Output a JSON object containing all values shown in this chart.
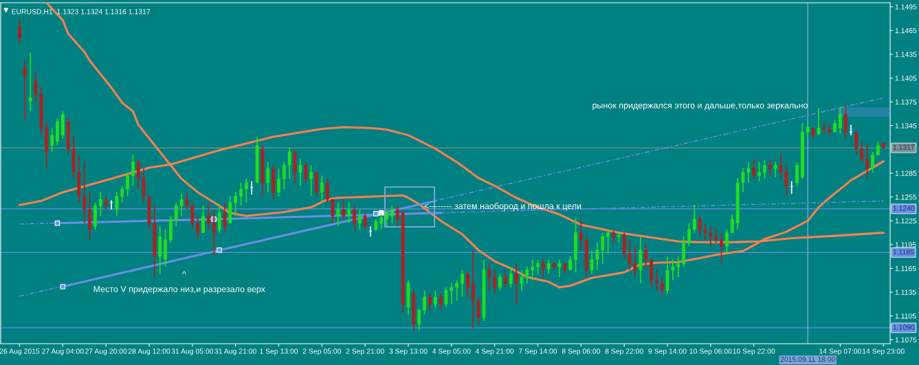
{
  "chart_data": {
    "type": "candlestick",
    "title": "EURUSD,H1  1.1323 1.1324 1.1316 1.1317",
    "categories": [
      "26 Aug 2015",
      null,
      null,
      null,
      null,
      null,
      null,
      null,
      "27 Aug 04:00",
      null,
      null,
      null,
      null,
      null,
      null,
      null,
      "27 Aug 20:00",
      null,
      null,
      null,
      null,
      null,
      null,
      null,
      "28 Aug 12:00",
      null,
      null,
      null,
      null,
      null,
      null,
      null,
      "31 Aug 05:00",
      null,
      null,
      null,
      null,
      null,
      null,
      null,
      "31 Aug 21:00",
      null,
      null,
      null,
      null,
      null,
      null,
      null,
      "1 Sep 13:00",
      null,
      null,
      null,
      null,
      null,
      null,
      null,
      "2 Sep 05:00",
      null,
      null,
      null,
      null,
      null,
      null,
      null,
      "2 Sep 21:00",
      null,
      null,
      null,
      null,
      null,
      null,
      null,
      "3 Sep 13:00",
      null,
      null,
      null,
      null,
      null,
      null,
      null,
      "4 Sep 05:00",
      null,
      null,
      null,
      null,
      null,
      null,
      null,
      "4 Sep 21:00",
      null,
      null,
      null,
      null,
      null,
      null,
      null,
      "7 Sep 14:00",
      null,
      null,
      null,
      null,
      null,
      null,
      null,
      "8 Sep 06:00",
      null,
      null,
      null,
      null,
      null,
      null,
      null,
      "8 Sep 22:00",
      null,
      null,
      null,
      null,
      null,
      null,
      null,
      "9 Sep 14:00",
      null,
      null,
      null,
      null,
      null,
      null,
      null,
      "10 Sep 06:00",
      null,
      null,
      null,
      null,
      null,
      null,
      null,
      "10 Sep 22:00",
      null,
      null,
      null,
      null,
      null,
      null,
      null,
      null,
      null,
      "2015.09.11 18:00",
      null,
      null,
      null,
      null,
      null,
      "14 Sep 07:00",
      null,
      null,
      null,
      null,
      null,
      null,
      null,
      "14 Sep 23:00"
    ],
    "ohlc": [
      [
        1.1469,
        1.148,
        1.1448,
        1.1455
      ],
      [
        1.1418,
        1.1427,
        1.1352,
        1.1407
      ],
      [
        1.1376,
        1.1437,
        1.1363,
        1.138
      ],
      [
        1.1401,
        1.1412,
        1.1374,
        1.1384
      ],
      [
        1.1384,
        1.1393,
        1.1333,
        1.1342
      ],
      [
        1.1342,
        1.135,
        1.1291,
        1.1312
      ],
      [
        1.132,
        1.1342,
        1.1312,
        1.1333
      ],
      [
        1.1325,
        1.1354,
        1.132,
        1.135
      ],
      [
        1.1333,
        1.1363,
        1.1329,
        1.1359
      ],
      [
        1.135,
        1.1354,
        1.1308,
        1.1316
      ],
      [
        1.1316,
        1.1333,
        1.1278,
        1.1286
      ],
      [
        1.1286,
        1.1308,
        1.1248,
        1.1256
      ],
      [
        1.1256,
        1.1299,
        1.1222,
        1.1239
      ],
      [
        1.1239,
        1.1261,
        1.1201,
        1.1214
      ],
      [
        1.1218,
        1.1248,
        1.1214,
        1.1244
      ],
      [
        1.1244,
        1.1261,
        1.1231,
        1.1252
      ],
      [
        1.125,
        1.1256,
        1.1239,
        1.1244
      ],
      [
        1.1248,
        1.1251,
        1.1239,
        1.1248
      ],
      [
        1.1239,
        1.1261,
        1.1231,
        1.1256
      ],
      [
        1.1256,
        1.1269,
        1.1248,
        1.1265
      ],
      [
        1.1265,
        1.1286,
        1.1256,
        1.1282
      ],
      [
        1.1282,
        1.1308,
        1.1269,
        1.1299
      ],
      [
        1.1299,
        1.1303,
        1.1265,
        1.1278
      ],
      [
        1.1278,
        1.1291,
        1.1248,
        1.1256
      ],
      [
        1.1256,
        1.1256,
        1.1214,
        1.1222
      ],
      [
        1.1222,
        1.1245,
        1.1154,
        1.118
      ],
      [
        1.118,
        1.1218,
        1.1158,
        1.1205
      ],
      [
        1.1176,
        1.1214,
        1.1167,
        1.1201
      ],
      [
        1.1201,
        1.1231,
        1.1197,
        1.1227
      ],
      [
        1.1227,
        1.1248,
        1.1218,
        1.1244
      ],
      [
        1.1244,
        1.1259,
        1.1231,
        1.1252
      ],
      [
        1.1252,
        1.1261,
        1.1239,
        1.1244
      ],
      [
        1.1244,
        1.1248,
        1.1214,
        1.1222
      ],
      [
        1.1222,
        1.1231,
        1.1201,
        1.121
      ],
      [
        1.121,
        1.1244,
        1.121,
        1.1231
      ],
      [
        1.1231,
        1.1248,
        1.1214,
        1.1222
      ],
      [
        1.1222,
        1.1239,
        1.118,
        1.121
      ],
      [
        1.1214,
        1.1244,
        1.121,
        1.1235
      ],
      [
        1.1235,
        1.1248,
        1.121,
        1.1218
      ],
      [
        1.1222,
        1.1256,
        1.1222,
        1.1248
      ],
      [
        1.1248,
        1.1261,
        1.1231,
        1.1256
      ],
      [
        1.1256,
        1.1273,
        1.1244,
        1.1265
      ],
      [
        1.1265,
        1.1278,
        1.1248,
        1.1273
      ],
      [
        1.1267,
        1.1275,
        1.1258,
        1.1267
      ],
      [
        1.1273,
        1.1331,
        1.1273,
        1.132
      ],
      [
        1.1316,
        1.132,
        1.1256,
        1.1273
      ],
      [
        1.1273,
        1.1299,
        1.1261,
        1.1291
      ],
      [
        1.1291,
        1.1295,
        1.1252,
        1.1261
      ],
      [
        1.1261,
        1.1291,
        1.1256,
        1.1278
      ],
      [
        1.1278,
        1.1299,
        1.1265,
        1.1295
      ],
      [
        1.1295,
        1.1318,
        1.1278,
        1.1312
      ],
      [
        1.1312,
        1.1312,
        1.1273,
        1.1286
      ],
      [
        1.1286,
        1.1303,
        1.1269,
        1.1295
      ],
      [
        1.1295,
        1.1299,
        1.1273,
        1.1278
      ],
      [
        1.1278,
        1.1295,
        1.1256,
        1.1286
      ],
      [
        1.1286,
        1.1286,
        1.1256,
        1.1261
      ],
      [
        1.1261,
        1.1282,
        1.1248,
        1.1273
      ],
      [
        1.1273,
        1.1278,
        1.1248,
        1.1252
      ],
      [
        1.1252,
        1.1252,
        1.1222,
        1.1231
      ],
      [
        1.1231,
        1.1248,
        1.1218,
        1.1239
      ],
      [
        1.1239,
        1.1252,
        1.1227,
        1.1231
      ],
      [
        1.1231,
        1.1248,
        1.1222,
        1.1239
      ],
      [
        1.1239,
        1.1244,
        1.1214,
        1.1222
      ],
      [
        1.1222,
        1.1239,
        1.1214,
        1.1231
      ],
      [
        1.1231,
        1.1235,
        1.1214,
        1.1218
      ],
      [
        1.1212,
        1.1218,
        1.1205,
        1.1212
      ],
      [
        1.1214,
        1.1227,
        1.1212,
        1.1224
      ],
      [
        1.1222,
        1.1233,
        1.1214,
        1.1229
      ],
      [
        1.1227,
        1.1239,
        1.1218,
        1.1235
      ],
      [
        1.1231,
        1.1244,
        1.1222,
        1.1239
      ],
      [
        1.1239,
        1.1244,
        1.1218,
        1.1227
      ],
      [
        1.1235,
        1.1237,
        1.1109,
        1.112
      ],
      [
        1.1116,
        1.115,
        1.1106,
        1.1146
      ],
      [
        1.1133,
        1.1137,
        1.1086,
        1.1095
      ],
      [
        1.1095,
        1.1114,
        1.1086,
        1.1112
      ],
      [
        1.1112,
        1.1137,
        1.1107,
        1.1129
      ],
      [
        1.1129,
        1.1133,
        1.1112,
        1.112
      ],
      [
        1.112,
        1.1137,
        1.1116,
        1.1129
      ],
      [
        1.1129,
        1.1133,
        1.1112,
        1.112
      ],
      [
        1.112,
        1.1141,
        1.1116,
        1.1137
      ],
      [
        1.1137,
        1.1146,
        1.112,
        1.1141
      ],
      [
        1.1141,
        1.115,
        1.1124,
        1.1146
      ],
      [
        1.1146,
        1.1163,
        1.1129,
        1.1158
      ],
      [
        1.1158,
        1.1161,
        1.1129,
        1.1141
      ],
      [
        1.1146,
        1.1188,
        1.1089,
        1.1124
      ],
      [
        1.1124,
        1.1129,
        1.1095,
        1.1103
      ],
      [
        1.1103,
        1.1176,
        1.1099,
        1.1163
      ],
      [
        1.1163,
        1.1171,
        1.1137,
        1.1154
      ],
      [
        1.1154,
        1.1163,
        1.1133,
        1.1141
      ],
      [
        1.1141,
        1.1158,
        1.1137,
        1.1154
      ],
      [
        1.1154,
        1.1163,
        1.1141,
        1.1146
      ],
      [
        1.1146,
        1.1167,
        1.1141,
        1.1158
      ],
      [
        1.1158,
        1.1171,
        1.112,
        1.1146
      ],
      [
        1.1146,
        1.1163,
        1.1137,
        1.1154
      ],
      [
        1.1154,
        1.1167,
        1.1146,
        1.1163
      ],
      [
        1.1163,
        1.1176,
        1.115,
        1.1167
      ],
      [
        1.1167,
        1.1176,
        1.1158,
        1.1171
      ],
      [
        1.1171,
        1.1177,
        1.1154,
        1.1164
      ],
      [
        1.1164,
        1.1176,
        1.1158,
        1.1171
      ],
      [
        1.1171,
        1.1173,
        1.1163,
        1.1167
      ],
      [
        1.1167,
        1.1176,
        1.1154,
        1.1171
      ],
      [
        1.1171,
        1.1171,
        1.1158,
        1.1163
      ],
      [
        1.1163,
        1.118,
        1.1163,
        1.1176
      ],
      [
        1.1176,
        1.1229,
        1.116,
        1.121
      ],
      [
        1.121,
        1.1227,
        1.1188,
        1.1201
      ],
      [
        1.1201,
        1.1205,
        1.1154,
        1.1163
      ],
      [
        1.1163,
        1.1188,
        1.1158,
        1.1176
      ],
      [
        1.1176,
        1.1197,
        1.1163,
        1.1188
      ],
      [
        1.1188,
        1.121,
        1.1171,
        1.1205
      ],
      [
        1.1205,
        1.1214,
        1.1184,
        1.121
      ],
      [
        1.121,
        1.1214,
        1.1197,
        1.1205
      ],
      [
        1.1205,
        1.121,
        1.1197,
        1.1207
      ],
      [
        1.1207,
        1.121,
        1.1176,
        1.1184
      ],
      [
        1.1184,
        1.1201,
        1.1163,
        1.1171
      ],
      [
        1.1171,
        1.1193,
        1.1154,
        1.1163
      ],
      [
        1.1163,
        1.1205,
        1.1146,
        1.1188
      ],
      [
        1.1188,
        1.1197,
        1.1163,
        1.1176
      ],
      [
        1.1176,
        1.1176,
        1.1141,
        1.115
      ],
      [
        1.115,
        1.1163,
        1.1137,
        1.1146
      ],
      [
        1.1146,
        1.1154,
        1.1131,
        1.1137
      ],
      [
        1.1137,
        1.118,
        1.1133,
        1.1163
      ],
      [
        1.1163,
        1.1176,
        1.115,
        1.1167
      ],
      [
        1.1167,
        1.118,
        1.1154,
        1.1171
      ],
      [
        1.1171,
        1.1205,
        1.1167,
        1.1197
      ],
      [
        1.1197,
        1.1222,
        1.1193,
        1.1214
      ],
      [
        1.1214,
        1.1245,
        1.121,
        1.1227
      ],
      [
        1.1227,
        1.1231,
        1.1205,
        1.1214
      ],
      [
        1.1214,
        1.1222,
        1.1201,
        1.121
      ],
      [
        1.121,
        1.1218,
        1.1193,
        1.1205
      ],
      [
        1.1205,
        1.1214,
        1.1197,
        1.1201
      ],
      [
        1.1201,
        1.121,
        1.1171,
        1.1193
      ],
      [
        1.1193,
        1.1214,
        1.1184,
        1.121
      ],
      [
        1.121,
        1.1233,
        1.121,
        1.1227
      ],
      [
        1.1222,
        1.1279,
        1.1214,
        1.1273
      ],
      [
        1.1273,
        1.1291,
        1.1261,
        1.1286
      ],
      [
        1.1286,
        1.1299,
        1.1273,
        1.1291
      ],
      [
        1.1291,
        1.1303,
        1.1278,
        1.1282
      ],
      [
        1.1282,
        1.1299,
        1.1275,
        1.1286
      ],
      [
        1.1286,
        1.1301,
        1.1278,
        1.1295
      ],
      [
        1.1295,
        1.1303,
        1.1282,
        1.1291
      ],
      [
        1.1291,
        1.1299,
        1.128,
        1.1295
      ],
      [
        1.1295,
        1.1309,
        1.1278,
        1.1286
      ],
      [
        1.1286,
        1.1295,
        1.1256,
        1.1269
      ],
      [
        1.1268,
        1.1275,
        1.1259,
        1.1268
      ],
      [
        1.1273,
        1.1299,
        1.1269,
        1.1295
      ],
      [
        1.128,
        1.1348,
        1.1278,
        1.1337
      ],
      [
        1.1337,
        1.1348,
        1.1329,
        1.1343
      ],
      [
        1.1342,
        1.1342,
        1.1329,
        1.1333
      ],
      [
        1.1335,
        1.1367,
        1.1333,
        1.1342
      ],
      [
        1.1342,
        1.135,
        1.1335,
        1.134
      ],
      [
        1.134,
        1.1346,
        1.1333,
        1.1337
      ],
      [
        1.1337,
        1.1352,
        1.1337,
        1.1348
      ],
      [
        1.1342,
        1.1369,
        1.1335,
        1.1359
      ],
      [
        1.1359,
        1.1371,
        1.1329,
        1.1337
      ],
      [
        1.1337,
        1.1346,
        1.1333,
        1.1337
      ],
      [
        1.1337,
        1.1337,
        1.1309,
        1.1316
      ],
      [
        1.1316,
        1.1325,
        1.1299,
        1.1303
      ],
      [
        1.1303,
        1.1322,
        1.1278,
        1.1291
      ],
      [
        1.1291,
        1.1312,
        1.1286,
        1.1308
      ],
      [
        1.1308,
        1.1325,
        1.1308,
        1.132
      ],
      [
        1.1323,
        1.1324,
        1.1316,
        1.1317
      ]
    ],
    "series": [
      {
        "type": "line",
        "color": "#ff7f50",
        "line_style": "solid",
        "values": [
          null,
          null,
          null,
          null,
          null,
          1.15,
          null,
          null,
          1.1478,
          1.1461,
          null,
          null,
          1.1438,
          1.1427,
          null,
          1.141,
          null,
          1.1393,
          null,
          1.1374,
          null,
          1.1363,
          1.1346,
          null,
          1.1329,
          null,
          1.1312,
          null,
          1.1295,
          null,
          1.1278,
          null,
          null,
          1.1261,
          null,
          null,
          null,
          1.1244,
          null,
          1.1235,
          null,
          null,
          1.1231,
          null,
          null,
          null,
          null,
          null,
          null,
          1.1236,
          null,
          null,
          null,
          null,
          1.1242,
          null,
          null,
          1.1252,
          null,
          1.1254,
          null,
          null,
          null,
          null,
          null,
          null,
          null,
          null,
          null,
          null,
          null,
          1.1257,
          1.1254,
          null,
          1.1246,
          null,
          null,
          null,
          1.1225,
          null,
          null,
          null,
          1.1208,
          null,
          null,
          1.1188,
          null,
          null,
          1.1174,
          null,
          null,
          1.1165,
          null,
          null,
          1.1154,
          null,
          null,
          null,
          1.1148,
          null,
          1.1141,
          null,
          1.1143,
          null,
          null,
          null,
          1.1153,
          null,
          null,
          null,
          null,
          null,
          1.116,
          null,
          null,
          1.117,
          null,
          null,
          1.1172,
          null,
          null,
          null,
          1.1173,
          null,
          null,
          null,
          1.1178,
          null,
          null,
          1.1182,
          null,
          null,
          null,
          null,
          1.1187,
          null,
          1.1194,
          null,
          1.1202,
          null,
          null,
          null,
          1.1211,
          null,
          null,
          null,
          1.1225,
          null,
          1.1242,
          null,
          1.1254,
          null,
          1.1265,
          null,
          1.1276,
          null,
          null,
          1.1288,
          null,
          null,
          1.13
        ]
      },
      {
        "type": "line",
        "color": "#ff7f50",
        "line_style": "solid",
        "values": [
          1.1245,
          null,
          null,
          null,
          1.125,
          null,
          null,
          null,
          1.1261,
          null,
          null,
          null,
          null,
          null,
          null,
          null,
          null,
          1.1278,
          null,
          null,
          null,
          null,
          null,
          null,
          1.1292,
          null,
          null,
          null,
          1.1296,
          null,
          null,
          null,
          null,
          null,
          null,
          null,
          null,
          1.1314,
          null,
          null,
          null,
          null,
          null,
          null,
          null,
          null,
          null,
          1.1331,
          null,
          null,
          null,
          null,
          null,
          null,
          null,
          null,
          1.1341,
          null,
          null,
          null,
          1.1343,
          null,
          null,
          null,
          null,
          1.1342,
          null,
          null,
          1.134,
          null,
          null,
          null,
          1.1333,
          null,
          null,
          null,
          null,
          1.1316,
          null,
          null,
          null,
          1.1299,
          null,
          null,
          null,
          1.1279,
          null,
          null,
          1.1269,
          null,
          null,
          null,
          1.1254,
          null,
          null,
          null,
          1.1242,
          null,
          null,
          null,
          1.1233,
          null,
          null,
          null,
          1.122,
          null,
          null,
          null,
          null,
          null,
          null,
          1.121,
          null,
          null,
          null,
          null,
          1.1205,
          null,
          null,
          null,
          null,
          null,
          1.1199,
          null,
          null,
          null,
          1.1198,
          null,
          null,
          null,
          null,
          null,
          1.1198,
          null,
          null,
          null,
          null,
          1.1199,
          null,
          null,
          null,
          null,
          null,
          1.1203,
          null,
          null,
          null,
          null,
          null,
          null,
          null,
          1.1206,
          null,
          null,
          null,
          null,
          null,
          null,
          null,
          null,
          1.121
        ]
      },
      {
        "type": "line",
        "color": "#6a8ee6",
        "line_style": "dashed",
        "values": [
          1.113,
          null,
          null,
          null,
          null,
          null,
          null,
          null,
          null,
          null,
          null,
          null,
          null,
          null,
          null,
          null,
          null,
          null,
          null,
          null,
          null,
          null,
          null,
          null,
          null,
          null,
          null,
          null,
          null,
          null,
          null,
          null,
          null,
          null,
          null,
          null,
          null,
          null,
          null,
          null,
          null,
          null,
          null,
          null,
          null,
          null,
          null,
          null,
          null,
          null,
          null,
          null,
          null,
          null,
          null,
          null,
          null,
          null,
          null,
          null,
          null,
          null,
          null,
          null,
          null,
          null,
          null,
          null,
          null,
          null,
          null,
          null,
          null,
          null,
          null,
          null,
          null,
          null,
          null,
          null,
          null,
          null,
          null,
          null,
          null,
          null,
          null,
          null,
          null,
          null,
          null,
          null,
          null,
          null,
          null,
          null,
          null,
          null,
          null,
          null,
          null,
          null,
          null,
          null,
          null,
          null,
          null,
          null,
          null,
          null,
          null,
          null,
          null,
          null,
          null,
          null,
          null,
          null,
          null,
          null,
          null,
          null,
          null,
          null,
          null,
          null,
          null,
          null,
          null,
          null,
          null,
          null,
          null,
          null,
          null,
          null,
          null,
          null,
          null,
          null,
          null,
          null,
          null,
          null,
          null,
          null,
          null,
          null,
          null,
          null,
          null,
          null,
          null,
          null,
          null,
          null,
          null,
          null,
          null,
          null,
          1.138
        ]
      },
      {
        "type": "line",
        "color": "#6a8ee6",
        "line_style": "solid",
        "values": [
          null,
          null,
          null,
          null,
          null,
          null,
          null,
          null,
          1.1142,
          null,
          null,
          null,
          null,
          null,
          null,
          null,
          null,
          null,
          null,
          null,
          null,
          null,
          null,
          null,
          null,
          null,
          null,
          null,
          null,
          null,
          null,
          null,
          null,
          null,
          null,
          null,
          null,
          1.1188,
          null,
          null,
          null,
          null,
          null,
          null,
          null,
          null,
          null,
          null,
          null,
          null,
          null,
          null,
          null,
          null,
          null,
          null,
          null,
          null,
          null,
          null,
          null,
          null,
          null,
          null,
          null,
          null,
          null,
          null,
          null,
          null,
          null,
          null,
          null,
          null,
          null,
          null,
          null,
          1.125,
          null,
          null,
          null,
          null,
          null,
          null,
          null,
          null,
          null,
          null,
          null,
          null,
          null,
          null,
          null,
          null,
          null,
          null,
          null,
          null,
          null,
          null,
          null,
          null,
          null,
          null,
          null,
          null,
          null,
          null,
          null,
          null,
          null,
          null,
          null,
          null,
          null,
          null,
          null,
          null,
          null,
          null,
          null,
          null,
          null,
          null,
          null,
          null,
          null,
          null,
          null,
          null,
          null,
          null,
          null,
          null,
          null,
          null,
          null,
          null,
          null,
          null,
          null,
          null,
          null,
          null,
          null,
          null,
          null,
          null,
          null,
          null,
          null,
          null,
          null,
          null,
          null,
          null,
          null,
          null,
          null,
          null,
          null
        ]
      },
      {
        "type": "line",
        "color": "#6a8ee6",
        "line_style": "dashed",
        "values": [
          1.1221,
          null,
          null,
          null,
          null,
          null,
          null,
          null,
          null,
          null,
          null,
          null,
          null,
          null,
          null,
          null,
          null,
          null,
          null,
          null,
          null,
          null,
          null,
          null,
          null,
          null,
          null,
          null,
          null,
          null,
          null,
          null,
          null,
          null,
          null,
          null,
          null,
          null,
          null,
          null,
          null,
          null,
          null,
          null,
          null,
          null,
          null,
          null,
          null,
          null,
          null,
          null,
          null,
          null,
          null,
          null,
          null,
          null,
          null,
          null,
          null,
          null,
          null,
          null,
          null,
          null,
          null,
          null,
          null,
          null,
          null,
          null,
          null,
          null,
          null,
          null,
          null,
          null,
          null,
          null,
          null,
          null,
          null,
          null,
          null,
          null,
          null,
          null,
          null,
          null,
          null,
          null,
          null,
          null,
          null,
          null,
          null,
          null,
          null,
          null,
          null,
          null,
          null,
          null,
          null,
          null,
          null,
          null,
          null,
          null,
          null,
          null,
          null,
          null,
          null,
          null,
          null,
          null,
          null,
          null,
          null,
          null,
          null,
          null,
          null,
          null,
          null,
          null,
          null,
          null,
          null,
          null,
          null,
          null,
          null,
          null,
          null,
          null,
          null,
          null,
          null,
          null,
          null,
          null,
          null,
          null,
          null,
          null,
          null,
          null,
          null,
          null,
          null,
          null,
          null,
          null,
          null,
          null,
          null,
          null,
          1.125
        ]
      },
      {
        "type": "line",
        "color": "#6a8ee6",
        "line_style": "solid",
        "values": [
          null,
          null,
          null,
          null,
          null,
          null,
          null,
          1.1222,
          null,
          null,
          null,
          null,
          null,
          null,
          null,
          null,
          null,
          null,
          null,
          null,
          null,
          null,
          null,
          null,
          null,
          null,
          null,
          null,
          null,
          null,
          null,
          null,
          null,
          null,
          null,
          null,
          1.1227,
          null,
          null,
          null,
          null,
          null,
          null,
          null,
          null,
          null,
          null,
          null,
          null,
          null,
          null,
          null,
          null,
          null,
          null,
          null,
          null,
          null,
          null,
          null,
          null,
          null,
          null,
          null,
          null,
          null,
          null,
          null,
          null,
          null,
          null,
          null,
          null,
          null,
          null,
          null,
          null,
          null,
          1.1235,
          null,
          null,
          null,
          null,
          null,
          null,
          null,
          null,
          null,
          null,
          null,
          null,
          null,
          null,
          null,
          null,
          null,
          null,
          null,
          null,
          null,
          null,
          null,
          null,
          null,
          null,
          null,
          null,
          null,
          null,
          null,
          null,
          null,
          null,
          null,
          null,
          null,
          null,
          null,
          null,
          null,
          null,
          null,
          null,
          null,
          null,
          null,
          null,
          null,
          null,
          null,
          null,
          null,
          null,
          null,
          null,
          null,
          null,
          null,
          null,
          null,
          null,
          null,
          null,
          null,
          null,
          null,
          null,
          null,
          null,
          null,
          null,
          null,
          null,
          null,
          null,
          null,
          null,
          null,
          null,
          null,
          null
        ]
      },
      {
        "type": "scatter",
        "color": "#6a8ee6",
        "marker": "square",
        "values": [
          null,
          null,
          null,
          null,
          null,
          null,
          null,
          1.1222,
          1.1142,
          null,
          null,
          null,
          null,
          null,
          null,
          null,
          null,
          null,
          null,
          null,
          null,
          null,
          null,
          null,
          null,
          null,
          null,
          null,
          null,
          null,
          null,
          null,
          null,
          null,
          null,
          null,
          1.1227,
          1.1188,
          null,
          null,
          null,
          null,
          null,
          null,
          null,
          null,
          null,
          null,
          null,
          null,
          null,
          null,
          null,
          null,
          null,
          null,
          null,
          null,
          null,
          null,
          null,
          null,
          null,
          null,
          null,
          null,
          1.1234,
          null,
          null,
          null,
          null,
          null,
          null,
          null,
          null,
          null,
          null,
          null,
          null,
          null,
          null,
          null,
          null,
          null,
          null,
          null,
          null,
          null,
          null,
          null,
          null,
          null,
          null,
          null,
          null,
          null,
          null,
          null,
          null,
          null,
          null,
          null,
          null,
          null,
          null,
          null,
          null,
          null,
          null,
          null,
          null,
          null,
          null,
          null,
          null,
          null,
          null,
          null,
          null,
          null,
          null,
          null,
          null,
          null,
          null,
          null,
          null,
          null,
          null,
          null,
          null,
          null,
          null,
          null,
          null,
          null,
          null,
          null,
          null,
          null,
          null,
          null,
          null,
          null,
          null,
          null,
          null,
          null,
          null,
          null,
          null,
          null,
          null,
          null,
          null,
          null,
          null,
          null,
          null,
          null,
          null
        ]
      },
      {
        "type": "scatter",
        "color": "#ffffff",
        "marker": "square",
        "values": [
          null,
          null,
          null,
          null,
          null,
          null,
          null,
          null,
          null,
          null,
          null,
          null,
          null,
          null,
          null,
          null,
          null,
          null,
          null,
          null,
          null,
          null,
          null,
          null,
          null,
          null,
          null,
          null,
          null,
          null,
          null,
          null,
          null,
          null,
          null,
          null,
          null,
          null,
          null,
          null,
          null,
          null,
          null,
          null,
          null,
          null,
          null,
          null,
          null,
          null,
          null,
          null,
          null,
          null,
          null,
          null,
          null,
          null,
          null,
          null,
          null,
          null,
          null,
          null,
          null,
          null,
          null,
          1.1235,
          null,
          null,
          null,
          null,
          null,
          null,
          null,
          null,
          null,
          null,
          null,
          null,
          null,
          null,
          null,
          null,
          null,
          null,
          null,
          null,
          null,
          null,
          null,
          null,
          null,
          null,
          null,
          null,
          null,
          null,
          null,
          null,
          null,
          null,
          null,
          null,
          null,
          null,
          null,
          null,
          null,
          null,
          null,
          null,
          null,
          null,
          null,
          null,
          null,
          null,
          null,
          null,
          null,
          null,
          null,
          null,
          null,
          null,
          null,
          null,
          null,
          null,
          null,
          null,
          null,
          null,
          null,
          null,
          null,
          null,
          null,
          null,
          null,
          null,
          null,
          null,
          null,
          null,
          null,
          null,
          null,
          null,
          null,
          null,
          null,
          null,
          null,
          null,
          null,
          null,
          null,
          null,
          null
        ]
      }
    ],
    "ref_lines": [
      {
        "axis": "y",
        "value": 1.1317,
        "label": "1.1317",
        "color": "#7f8f8f"
      },
      {
        "axis": "y",
        "value": 1.124,
        "label": "1.1240",
        "color": "#6a8ee6"
      },
      {
        "axis": "y",
        "value": 1.1185,
        "label": "1.1185",
        "color": "#6a8ee6"
      },
      {
        "axis": "y",
        "value": 1.109,
        "label": "1.1090",
        "color": "#6a8ee6"
      },
      {
        "axis": "x",
        "value": "2015.09.11 18:00",
        "color": "#7fa6d9"
      }
    ],
    "annotations": [
      "^",
      "Место V придержало низ,и разрезало верх",
      "<-------- затем наобород и пошла к цели",
      "рынок придержался этого и дальше,только зеркально"
    ],
    "ylim": [
      1.107,
      1.15
    ],
    "yticks": [
      1.1495,
      1.1465,
      1.1435,
      1.1405,
      1.1375,
      1.1345,
      1.1285,
      1.1255,
      1.1225,
      1.1195,
      1.1165,
      1.1135,
      1.1105,
      1.1075
    ],
    "bands": [
      {
        "axis": "y",
        "from": 1.1357,
        "to": 1.1367,
        "color": "#6a8ee6"
      }
    ],
    "grid": false
  }
}
